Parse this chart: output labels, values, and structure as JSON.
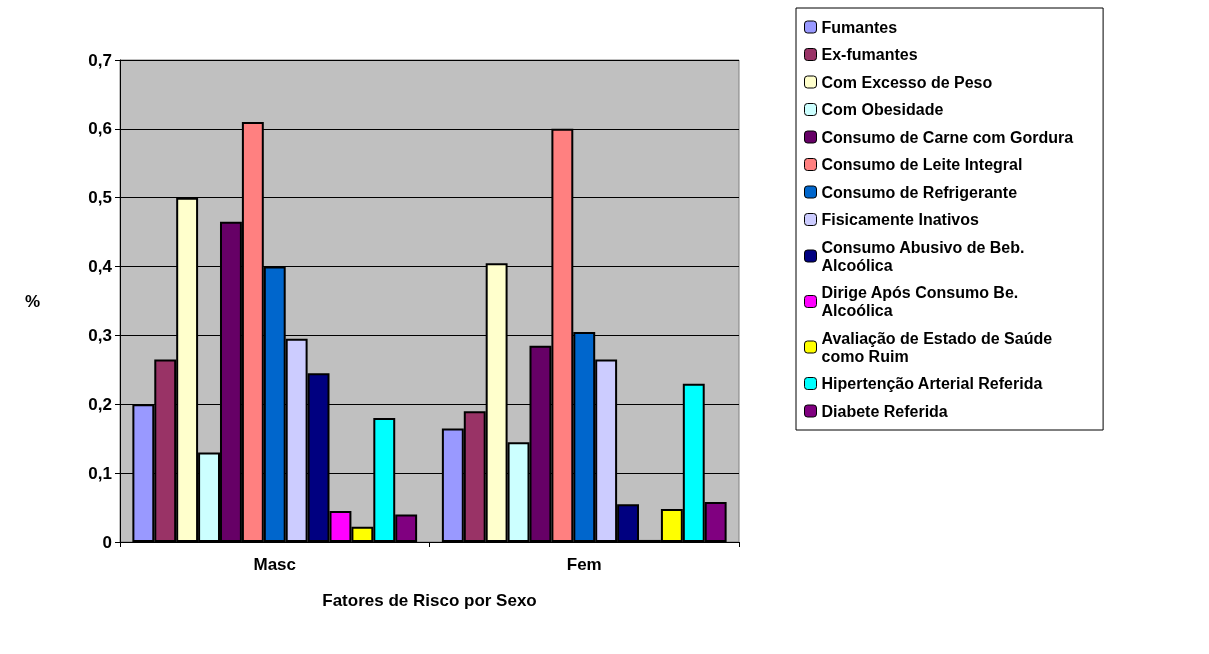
{
  "chart_data": {
    "type": "bar",
    "xlabel": "Fatores de Risco por Sexo",
    "ylabel": "%",
    "categories": [
      "Masc",
      "Fem"
    ],
    "series": [
      {
        "name": "Fumantes",
        "color": "#9999ff",
        "values": [
          0.2,
          0.165
        ]
      },
      {
        "name": "Ex-fumantes",
        "color": "#993366",
        "values": [
          0.265,
          0.19
        ]
      },
      {
        "name": "Com Excesso de Peso",
        "color": "#ffffcc",
        "values": [
          0.5,
          0.405
        ]
      },
      {
        "name": "Com Obesidade",
        "color": "#ccffff",
        "values": [
          0.13,
          0.145
        ]
      },
      {
        "name": "Consumo de Carne com Gordura",
        "color": "#660066",
        "values": [
          0.465,
          0.285
        ]
      },
      {
        "name": "Consumo de Leite Integral",
        "color": "#ff8080",
        "values": [
          0.61,
          0.6
        ]
      },
      {
        "name": "Consumo de Refrigerante",
        "color": "#0066cc",
        "values": [
          0.4,
          0.305
        ]
      },
      {
        "name": "Fisicamente Inativos",
        "color": "#ccccff",
        "values": [
          0.295,
          0.265
        ]
      },
      {
        "name": "Consumo Abusivo de Beb. Alcoólica",
        "color": "#000080",
        "values": [
          0.245,
          0.055
        ]
      },
      {
        "name": "Dirige Após Consumo Be. Alcoólica",
        "color": "#ff00ff",
        "values": [
          0.045,
          0.003
        ]
      },
      {
        "name": "Avaliação de Estado de Saúde como Ruim",
        "color": "#ffff00",
        "values": [
          0.022,
          0.048
        ]
      },
      {
        "name": "Hipertenção Arterial Referida",
        "color": "#00ffff",
        "values": [
          0.18,
          0.23
        ]
      },
      {
        "name": "Diabete Referida",
        "color": "#800080",
        "values": [
          0.04,
          0.058
        ]
      }
    ],
    "ylim": [
      0,
      0.7
    ],
    "yticks": [
      {
        "value": 0,
        "label": "0"
      },
      {
        "value": 0.1,
        "label": "0,1"
      },
      {
        "value": 0.2,
        "label": "0,2"
      },
      {
        "value": 0.3,
        "label": "0,3"
      },
      {
        "value": 0.4,
        "label": "0,4"
      },
      {
        "value": 0.5,
        "label": "0,5"
      },
      {
        "value": 0.6,
        "label": "0,6"
      },
      {
        "value": 0.7,
        "label": "0,7"
      }
    ],
    "grid": "y",
    "legend": "right"
  }
}
